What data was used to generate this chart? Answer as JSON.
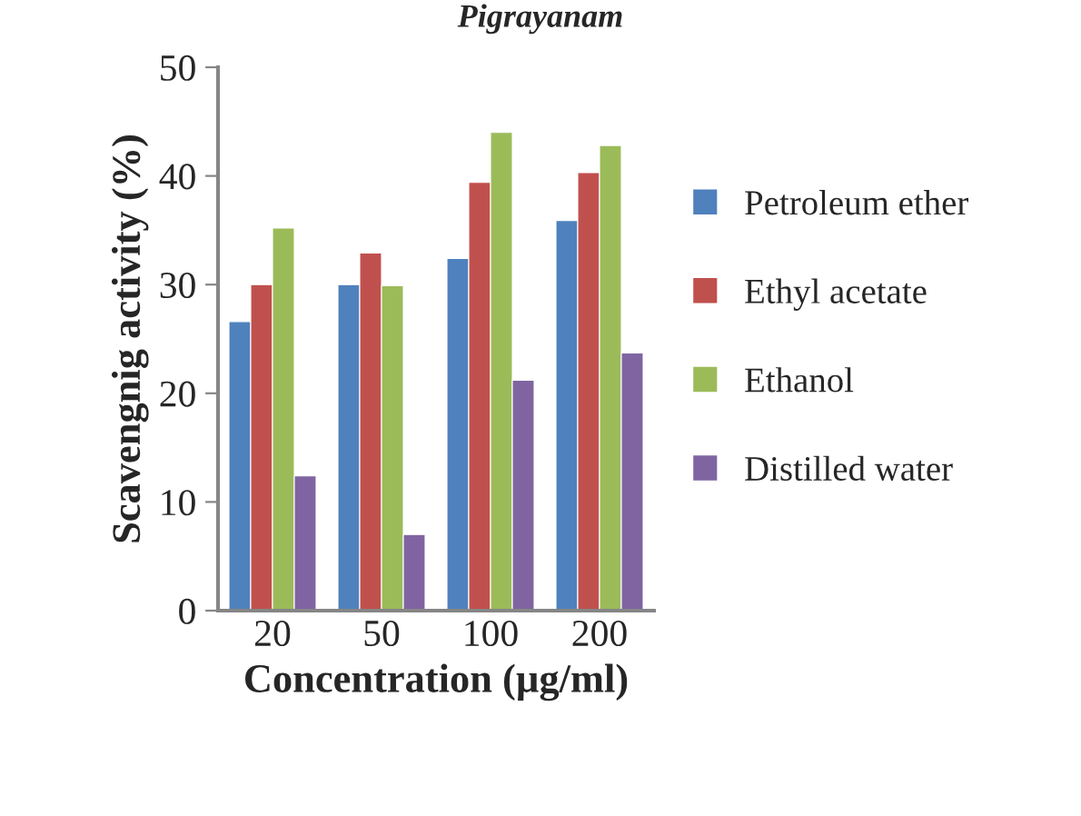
{
  "chart_data": {
    "type": "bar",
    "title": "Pigrayanam",
    "xlabel": "Concentration (µg/ml)",
    "ylabel": "Scavengnig activity (%)",
    "categories": [
      "20",
      "50",
      "100",
      "200"
    ],
    "series": [
      {
        "name": "Petroleum ether",
        "color": "#4f81bd",
        "values": [
          26.6,
          30.0,
          32.4,
          35.9
        ]
      },
      {
        "name": "Ethyl acetate",
        "color": "#c0504d",
        "values": [
          30.0,
          32.9,
          39.4,
          40.3
        ]
      },
      {
        "name": "Ethanol",
        "color": "#9bbb59",
        "values": [
          35.2,
          29.9,
          44.0,
          42.8
        ]
      },
      {
        "name": "Distilled water",
        "color": "#8064a2",
        "values": [
          12.4,
          7.0,
          21.2,
          23.7
        ]
      }
    ],
    "ylim": [
      0,
      50
    ],
    "yticks": [
      0,
      10,
      20,
      30,
      40,
      50
    ],
    "grid": false,
    "legend": "right"
  }
}
